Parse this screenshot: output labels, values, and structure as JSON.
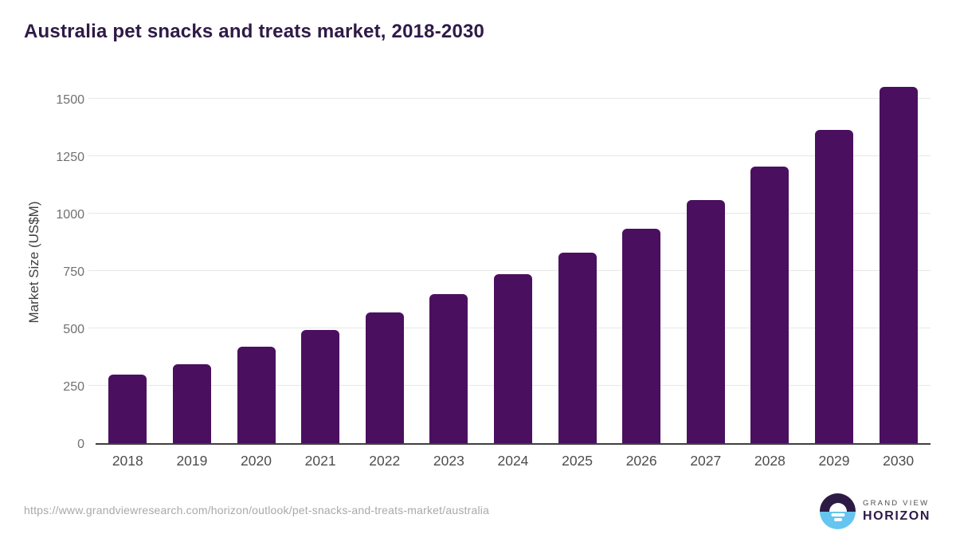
{
  "header": {
    "title": "Australia pet snacks and treats market, 2018-2030"
  },
  "chart_data": {
    "type": "bar",
    "title": "Australia pet snacks and treats market, 2018-2030",
    "categories": [
      "2018",
      "2019",
      "2020",
      "2021",
      "2022",
      "2023",
      "2024",
      "2025",
      "2026",
      "2027",
      "2028",
      "2029",
      "2030"
    ],
    "values": [
      300,
      343,
      420,
      492,
      568,
      648,
      735,
      830,
      935,
      1060,
      1203,
      1363,
      1552
    ],
    "xlabel": "",
    "ylabel": "Market Size (US$M)",
    "ylim": [
      0,
      1590
    ],
    "yticks": [
      0,
      250,
      500,
      750,
      1000,
      1250,
      1500
    ],
    "grid": true,
    "legend": false,
    "bar_color": "#4a105f"
  },
  "footer": {
    "source_url": "https://www.grandviewresearch.com/horizon/outlook/pet-snacks-and-treats-market/australia",
    "logo": {
      "brand_top": "GRAND VIEW",
      "brand_bottom": "HORIZON"
    }
  },
  "colors": {
    "bar": "#4a105f",
    "title_text": "#2e1a47",
    "gridline": "#e7e7e7",
    "axis_line": "#3f3f3f",
    "y_tick_text": "#707070",
    "x_tick_text": "#4d4d4d",
    "url_text": "#a9a9a9",
    "logo_top_half": "#2d1b45",
    "logo_bottom_half": "#66c5ef"
  }
}
